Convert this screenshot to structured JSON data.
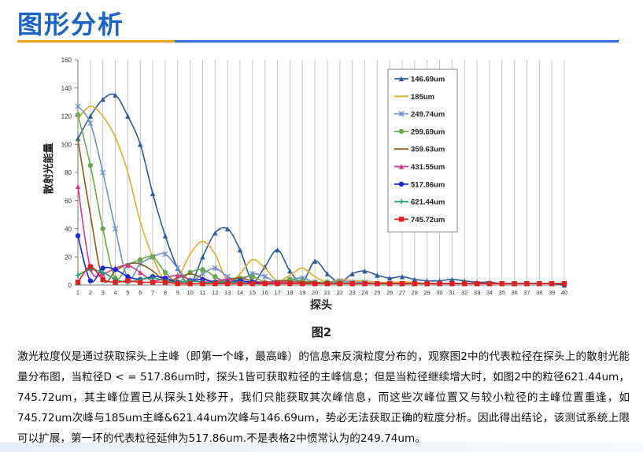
{
  "slide": {
    "title": "图形分析",
    "figure_caption": "图2",
    "body_text": "激光粒度仪是通过获取探头上主峰（即第一个峰，最高峰）的信息来反演粒度分布的，观察图2中的代表粒径在探头上的散射光能量分布图，当粒径D < = 517.86um时，探头1皆可获取粒径的主峰信息；但是当粒径继续增大时，如图2中的粒径621.44um，745.72um，其主峰位置已从探头1处移开，我们只能获取其次峰信息，而这些次峰位置又与较小粒径的主峰位置重逢，如745.72um次峰与185um主峰&621.44um次峰与146.69um，势必无法获取正确的粒度分析。因此得出结论，该测试系统上限可以扩展，第一环的代表粒径延伸为517.86um.不是表格2中惯常认为的249.74um。"
  },
  "chart_data": {
    "type": "line",
    "xlabel": "探头",
    "ylabel": "散射光能量",
    "ylim": [
      0,
      160
    ],
    "yticks": [
      0,
      20,
      40,
      60,
      80,
      100,
      120,
      140,
      160
    ],
    "categories": [
      "1",
      "2",
      "3",
      "4",
      "5",
      "6",
      "7",
      "8",
      "9",
      "10",
      "11",
      "12",
      "13",
      "14",
      "15",
      "16",
      "17",
      "18",
      "19",
      "20",
      "21",
      "22",
      "23",
      "24",
      "25",
      "26",
      "27",
      "28",
      "29",
      "30",
      "31",
      "32",
      "33",
      "34",
      "35",
      "36",
      "37",
      "38",
      "39",
      "40"
    ],
    "grid": "vertical",
    "legend_position": "top-right",
    "series": [
      {
        "name": "146.69um",
        "color": "#2e5a9c",
        "marker": "triangle",
        "values": [
          104,
          120,
          132,
          135,
          120,
          100,
          65,
          35,
          12,
          1,
          20,
          37,
          40,
          25,
          3,
          13,
          25,
          10,
          2,
          17,
          8,
          2,
          8,
          10,
          7,
          5,
          6,
          4,
          3,
          3,
          4,
          3,
          2,
          2,
          1,
          1,
          1,
          1,
          1,
          0
        ]
      },
      {
        "name": "185um",
        "color": "#e6aa2a",
        "marker": "none",
        "values": [
          118,
          127,
          120,
          105,
          80,
          45,
          20,
          3,
          5,
          22,
          31,
          22,
          3,
          8,
          18,
          12,
          3,
          7,
          12,
          6,
          2,
          4,
          3,
          3,
          2,
          2,
          2,
          2,
          1,
          1,
          1,
          1,
          1,
          1,
          1,
          1,
          1,
          1,
          1,
          1
        ]
      },
      {
        "name": "249.74um",
        "color": "#6f8fc8",
        "marker": "star",
        "values": [
          127,
          115,
          80,
          40,
          5,
          15,
          20,
          22,
          12,
          3,
          8,
          12,
          6,
          3,
          8,
          6,
          2,
          4,
          5,
          2,
          2,
          3,
          2,
          2,
          1,
          1,
          1,
          1,
          1,
          1,
          1,
          1,
          1,
          1,
          1,
          1,
          1,
          1,
          1,
          1
        ]
      },
      {
        "name": "299.69um",
        "color": "#6aa84f",
        "marker": "circle",
        "values": [
          121,
          85,
          40,
          5,
          14,
          18,
          20,
          9,
          2,
          9,
          11,
          6,
          2,
          5,
          6,
          2,
          2,
          4,
          3,
          2,
          2,
          2,
          1,
          1,
          1,
          1,
          1,
          1,
          1,
          1,
          1,
          1,
          1,
          1,
          1,
          1,
          1,
          1,
          1,
          1
        ]
      },
      {
        "name": "359.63um",
        "color": "#8a5a1e",
        "marker": "none",
        "values": [
          103,
          50,
          4,
          10,
          15,
          15,
          10,
          3,
          5,
          8,
          5,
          2,
          4,
          5,
          3,
          2,
          3,
          3,
          2,
          2,
          1,
          1,
          1,
          1,
          1,
          1,
          1,
          1,
          1,
          1,
          1,
          1,
          1,
          1,
          1,
          1,
          1,
          1,
          1,
          1
        ]
      },
      {
        "name": "431.55um",
        "color": "#d43a8c",
        "marker": "triangle",
        "values": [
          70,
          12,
          8,
          12,
          14,
          9,
          3,
          5,
          7,
          4,
          2,
          3,
          4,
          2,
          2,
          2,
          2,
          2,
          1,
          1,
          1,
          1,
          1,
          1,
          1,
          1,
          1,
          1,
          1,
          1,
          1,
          1,
          1,
          1,
          1,
          1,
          1,
          1,
          1,
          1
        ]
      },
      {
        "name": "517.86um",
        "color": "#1a2ad4",
        "marker": "circle",
        "values": [
          35,
          3,
          12,
          11,
          6,
          4,
          6,
          5,
          2,
          3,
          4,
          2,
          2,
          3,
          2,
          1,
          1,
          1,
          1,
          1,
          1,
          1,
          1,
          1,
          1,
          1,
          1,
          1,
          1,
          1,
          1,
          1,
          1,
          1,
          1,
          1,
          1,
          1,
          1,
          1
        ]
      },
      {
        "name": "621.44um",
        "color": "#1aa067",
        "marker": "plus",
        "values": [
          7,
          11,
          9,
          4,
          2,
          4,
          5,
          3,
          2,
          3,
          2,
          2,
          2,
          2,
          1,
          1,
          1,
          1,
          1,
          1,
          1,
          1,
          1,
          1,
          1,
          1,
          1,
          1,
          1,
          1,
          1,
          1,
          1,
          1,
          1,
          1,
          1,
          1,
          1,
          1
        ]
      },
      {
        "name": "745.72um",
        "color": "#e02020",
        "marker": "square",
        "values": [
          2,
          13,
          4,
          2,
          3,
          2,
          2,
          2,
          1,
          1,
          1,
          1,
          1,
          1,
          1,
          1,
          1,
          1,
          1,
          1,
          1,
          1,
          1,
          1,
          1,
          1,
          1,
          1,
          1,
          1,
          1,
          1,
          1,
          1,
          1,
          1,
          1,
          1,
          1,
          1
        ]
      }
    ]
  }
}
